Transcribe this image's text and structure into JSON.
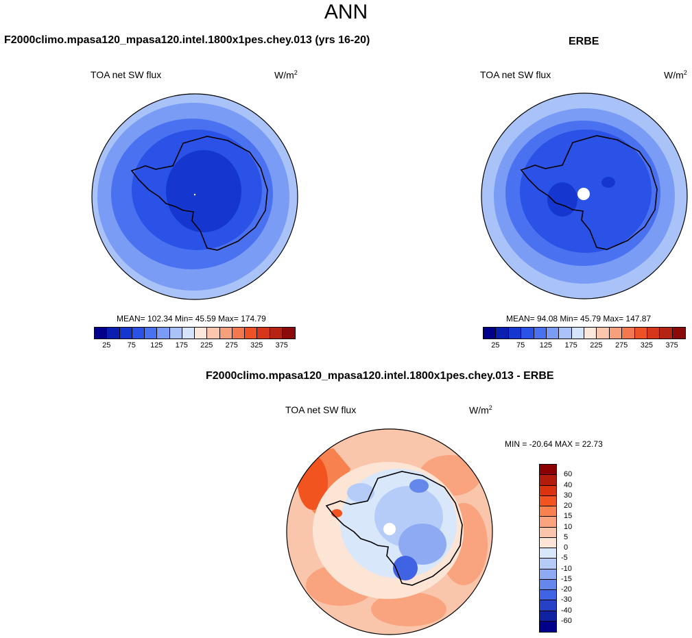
{
  "figure": {
    "title": "ANN",
    "variable": "TOA net SW flux",
    "units": "W/m²"
  },
  "panels": {
    "model": {
      "title": "F2000climo.mpasa120_mpasa120.intel.1800x1pes.chey.013 (yrs 16-20)",
      "label": "TOA net SW flux",
      "units": "W/m",
      "units_sup": "2",
      "stats": "MEAN= 102.34  Min=  45.59  Max= 174.79"
    },
    "obs": {
      "title": "ERBE",
      "label": "TOA net SW flux",
      "units": "W/m",
      "units_sup": "2",
      "stats": "MEAN=  94.08  Min=  45.79  Max= 147.87"
    },
    "diff": {
      "title": "F2000climo.mpasa120_mpasa120.intel.1800x1pes.chey.013 - ERBE",
      "label": "TOA net SW flux",
      "units": "W/m",
      "units_sup": "2",
      "stats": "MIN = -20.64 MAX =  22.73"
    }
  },
  "colorbars": {
    "abs": {
      "colors": [
        "#00008b",
        "#0a1fb0",
        "#1537d0",
        "#2a52e6",
        "#4a72f0",
        "#7a9cf5",
        "#a9c2f8",
        "#d6e4fb",
        "#fbe7dc",
        "#fac6ad",
        "#f7a07c",
        "#f3784f",
        "#ee5125",
        "#d6371a",
        "#b52413",
        "#8b0a0a"
      ],
      "ticks": [
        "25",
        "75",
        "125",
        "175",
        "225",
        "275",
        "325",
        "375"
      ]
    },
    "diff": {
      "colors": [
        "#8b0000",
        "#b31b0c",
        "#d9340f",
        "#f25420",
        "#f7824f",
        "#f9a47e",
        "#fac6ab",
        "#fde5d6",
        "#d9e7fb",
        "#b4ccf7",
        "#8daaf2",
        "#6487ec",
        "#3f63e2",
        "#2640c6",
        "#0f22a3",
        "#00008b"
      ],
      "ticks": [
        "60",
        "40",
        "30",
        "20",
        "15",
        "10",
        "5",
        "0",
        "-5",
        "-10",
        "-15",
        "-20",
        "-30",
        "-40",
        "-60"
      ]
    }
  },
  "chart_data": [
    {
      "type": "heatmap",
      "title": "F2000climo.mpasa120_mpasa120.intel.1800x1pes.chey.013 (yrs 16-20)",
      "variable": "TOA net SW flux",
      "units": "W/m2",
      "projection": "south polar stereographic",
      "mean": 102.34,
      "min": 45.59,
      "max": 174.79,
      "levels": [
        25,
        50,
        75,
        100,
        125,
        150,
        175,
        200,
        225,
        250,
        275,
        300,
        325,
        350,
        375
      ]
    },
    {
      "type": "heatmap",
      "title": "ERBE",
      "variable": "TOA net SW flux",
      "units": "W/m2",
      "projection": "south polar stereographic",
      "mean": 94.08,
      "min": 45.79,
      "max": 147.87,
      "levels": [
        25,
        50,
        75,
        100,
        125,
        150,
        175,
        200,
        225,
        250,
        275,
        300,
        325,
        350,
        375
      ]
    },
    {
      "type": "heatmap",
      "title": "F2000climo.mpasa120_mpasa120.intel.1800x1pes.chey.013 - ERBE",
      "variable": "TOA net SW flux",
      "units": "W/m2",
      "projection": "south polar stereographic",
      "min": -20.64,
      "max": 22.73,
      "levels": [
        -60,
        -40,
        -30,
        -20,
        -15,
        -10,
        -5,
        0,
        5,
        10,
        15,
        20,
        30,
        40,
        60
      ]
    }
  ]
}
